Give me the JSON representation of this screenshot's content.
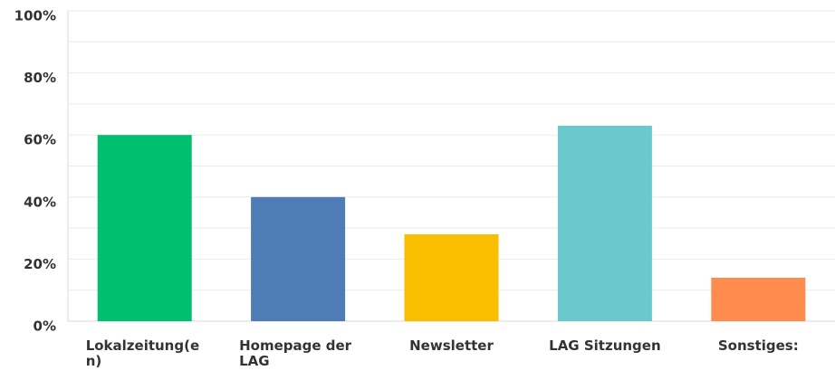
{
  "chart_data": {
    "type": "bar",
    "categories": [
      "Lokalzeitung(en)",
      "Homepage der LAG",
      "Newsletter",
      "LAG Sitzungen",
      "Sonstiges:"
    ],
    "values": [
      60,
      40,
      28,
      63,
      14
    ],
    "colors": [
      "#00bf6f",
      "#507cb6",
      "#f9be00",
      "#6bc8cd",
      "#ff8b4f"
    ],
    "ylim": [
      0,
      100
    ],
    "yticks": [
      {
        "value": 0,
        "label": "0%"
      },
      {
        "value": 20,
        "label": "20%"
      },
      {
        "value": 40,
        "label": "40%"
      },
      {
        "value": 60,
        "label": "60%"
      },
      {
        "value": 80,
        "label": "80%"
      },
      {
        "value": 100,
        "label": "100%"
      }
    ],
    "minor_yticks": [
      10,
      30,
      50,
      70,
      90
    ],
    "grid": true
  }
}
